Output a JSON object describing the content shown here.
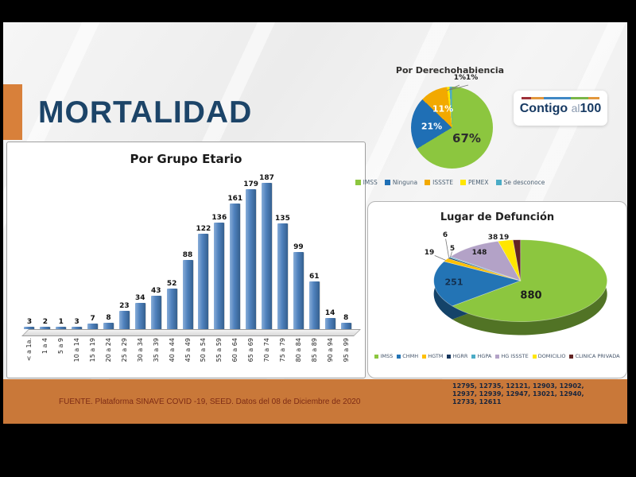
{
  "header": {
    "title": "MORTALIDAD"
  },
  "logo": {
    "word1": "Contigo",
    "word2": "al",
    "word3": "100"
  },
  "footer": {
    "source": "FUENTE. Plataforma SINAVE COVID -19, SEED. Datos del 08 de Diciembre de 2020",
    "folio_lines": [
      "12795, 12735, 12121, 12903, 12902,",
      "12937, 12939, 12947, 13021, 12940,",
      "12733, 12611"
    ]
  },
  "chart_data": [
    {
      "type": "bar",
      "title": "Por Grupo Etario",
      "categories": [
        "< a 1a.",
        "1 a 4",
        "5 a 9",
        "10 a 14",
        "15 a 19",
        "20 a 24",
        "25 a 29",
        "30 a 34",
        "35 a 39",
        "40 a 44",
        "45 a 49",
        "50 a 54",
        "55 a 59",
        "60 a 64",
        "65 a 69",
        "70 a 74",
        "75 a 79",
        "80 a 84",
        "85 a 89",
        "90 a 94",
        "95 a 99"
      ],
      "values": [
        3,
        2,
        1,
        3,
        7,
        8,
        23,
        34,
        43,
        52,
        88,
        122,
        136,
        161,
        179,
        187,
        135,
        99,
        61,
        14,
        8
      ],
      "bar_color": "#4F81BD",
      "ylim": [
        0,
        187
      ],
      "grid": false,
      "legend_position": "none"
    },
    {
      "type": "pie",
      "title": "Por Derechohabiencia",
      "slices": [
        {
          "label": "IMSS",
          "pct": 67,
          "color": "#8CC63F"
        },
        {
          "label": "Ninguna",
          "pct": 21,
          "color": "#1F6FB5"
        },
        {
          "label": "ISSSTE",
          "pct": 11,
          "color": "#F2A900"
        },
        {
          "label": "PEMEX",
          "pct": 1,
          "color": "#FFE600"
        },
        {
          "label": "Se desconoce",
          "pct": 1,
          "color": "#4BACC6"
        }
      ],
      "value_labels": {
        "imss": "67%",
        "ninguna": "21%",
        "issste": "11%",
        "tiny": "1%1%"
      },
      "legend_position": "bottom"
    },
    {
      "type": "pie3d",
      "title": "Lugar de Defunción",
      "slices": [
        {
          "label": "IMSS",
          "value": 880,
          "color": "#8CC63F"
        },
        {
          "label": "CHMH",
          "value": 251,
          "color": "#2374B5"
        },
        {
          "label": "HGTM",
          "value": 19,
          "color": "#FFC000"
        },
        {
          "label": "HGRR",
          "value": 6,
          "color": "#17365D"
        },
        {
          "label": "HGPA",
          "value": 5,
          "color": "#4BACC6"
        },
        {
          "label": "HG ISSSTE",
          "value": 148,
          "color": "#B3A2C7"
        },
        {
          "label": "DOMICILIO",
          "value": 38,
          "color": "#FFE600"
        },
        {
          "label": "CLINICA PRIVADA",
          "value": 19,
          "color": "#632423"
        }
      ],
      "legend_position": "bottom"
    }
  ]
}
